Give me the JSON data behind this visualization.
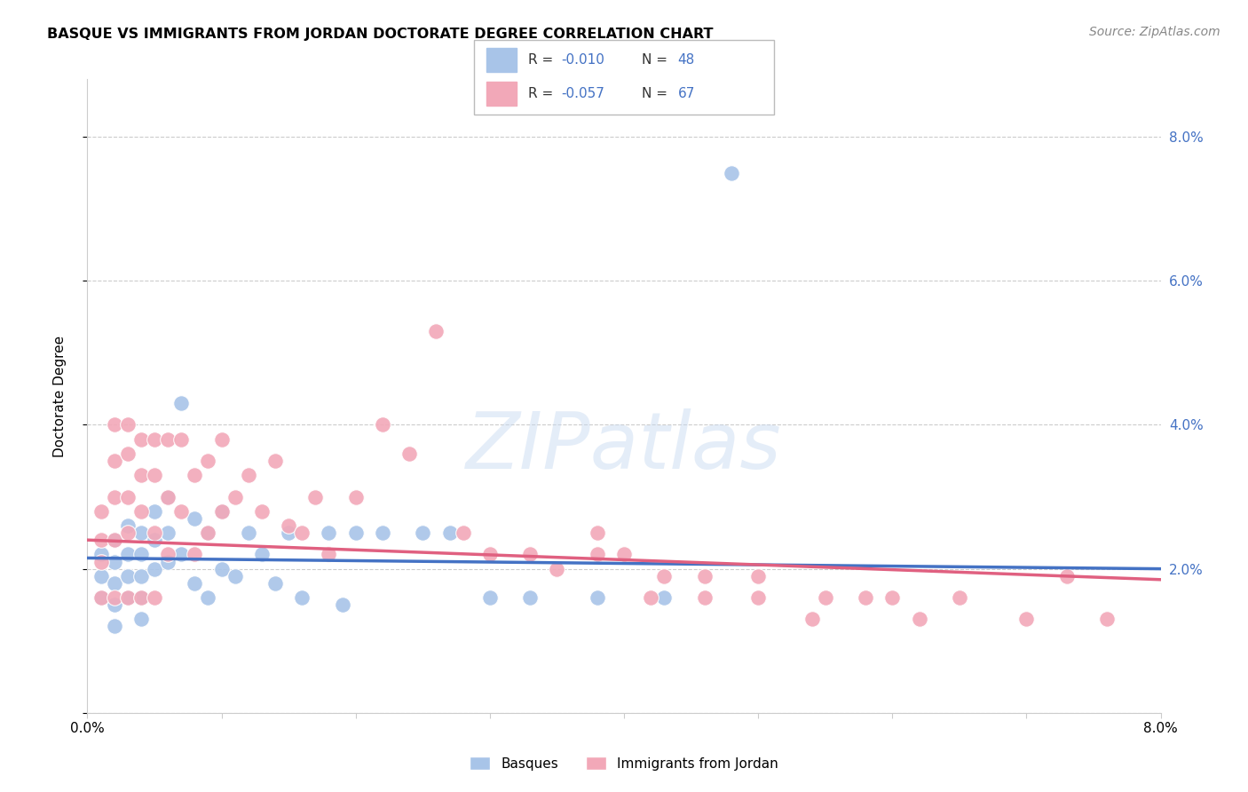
{
  "title": "BASQUE VS IMMIGRANTS FROM JORDAN DOCTORATE DEGREE CORRELATION CHART",
  "source": "Source: ZipAtlas.com",
  "ylabel": "Doctorate Degree",
  "x_min": 0.0,
  "x_max": 0.08,
  "y_min": 0.0,
  "y_max": 0.088,
  "color_blue": "#A8C4E8",
  "color_pink": "#F2A8B8",
  "color_line_blue": "#4472C4",
  "color_line_pink": "#E06080",
  "color_text_blue": "#4472C4",
  "color_grid": "#DDDDDD",
  "watermark": "ZIPatlas",
  "basque_x": [
    0.001,
    0.001,
    0.001,
    0.002,
    0.002,
    0.002,
    0.002,
    0.002,
    0.003,
    0.003,
    0.003,
    0.003,
    0.004,
    0.004,
    0.004,
    0.004,
    0.004,
    0.005,
    0.005,
    0.005,
    0.006,
    0.006,
    0.006,
    0.007,
    0.007,
    0.008,
    0.008,
    0.009,
    0.009,
    0.01,
    0.01,
    0.011,
    0.012,
    0.013,
    0.014,
    0.015,
    0.016,
    0.018,
    0.019,
    0.02,
    0.022,
    0.025,
    0.027,
    0.03,
    0.033,
    0.038,
    0.043,
    0.048
  ],
  "basque_y": [
    0.022,
    0.019,
    0.016,
    0.024,
    0.021,
    0.018,
    0.015,
    0.012,
    0.026,
    0.022,
    0.019,
    0.016,
    0.025,
    0.022,
    0.019,
    0.016,
    0.013,
    0.028,
    0.024,
    0.02,
    0.03,
    0.025,
    0.021,
    0.043,
    0.022,
    0.027,
    0.018,
    0.025,
    0.016,
    0.028,
    0.02,
    0.019,
    0.025,
    0.022,
    0.018,
    0.025,
    0.016,
    0.025,
    0.015,
    0.025,
    0.025,
    0.025,
    0.025,
    0.016,
    0.016,
    0.016,
    0.016,
    0.075
  ],
  "jordan_x": [
    0.001,
    0.001,
    0.001,
    0.001,
    0.002,
    0.002,
    0.002,
    0.002,
    0.002,
    0.003,
    0.003,
    0.003,
    0.003,
    0.003,
    0.004,
    0.004,
    0.004,
    0.004,
    0.005,
    0.005,
    0.005,
    0.005,
    0.006,
    0.006,
    0.006,
    0.007,
    0.007,
    0.008,
    0.008,
    0.009,
    0.009,
    0.01,
    0.01,
    0.011,
    0.012,
    0.013,
    0.014,
    0.015,
    0.016,
    0.017,
    0.018,
    0.02,
    0.022,
    0.024,
    0.026,
    0.028,
    0.03,
    0.033,
    0.035,
    0.038,
    0.04,
    0.043,
    0.046,
    0.05,
    0.055,
    0.06,
    0.065,
    0.07,
    0.073,
    0.076,
    0.038,
    0.042,
    0.046,
    0.05,
    0.054,
    0.058,
    0.062
  ],
  "jordan_y": [
    0.028,
    0.024,
    0.021,
    0.016,
    0.04,
    0.035,
    0.03,
    0.024,
    0.016,
    0.04,
    0.036,
    0.03,
    0.025,
    0.016,
    0.038,
    0.033,
    0.028,
    0.016,
    0.038,
    0.033,
    0.025,
    0.016,
    0.038,
    0.03,
    0.022,
    0.038,
    0.028,
    0.033,
    0.022,
    0.035,
    0.025,
    0.038,
    0.028,
    0.03,
    0.033,
    0.028,
    0.035,
    0.026,
    0.025,
    0.03,
    0.022,
    0.03,
    0.04,
    0.036,
    0.053,
    0.025,
    0.022,
    0.022,
    0.02,
    0.025,
    0.022,
    0.019,
    0.019,
    0.019,
    0.016,
    0.016,
    0.016,
    0.013,
    0.019,
    0.013,
    0.022,
    0.016,
    0.016,
    0.016,
    0.013,
    0.016,
    0.013
  ],
  "blue_trendline_x0": 0.0,
  "blue_trendline_x1": 0.08,
  "blue_trendline_y0": 0.0215,
  "blue_trendline_y1": 0.02,
  "pink_trendline_x0": 0.0,
  "pink_trendline_x1": 0.08,
  "pink_trendline_y0": 0.024,
  "pink_trendline_y1": 0.0185
}
